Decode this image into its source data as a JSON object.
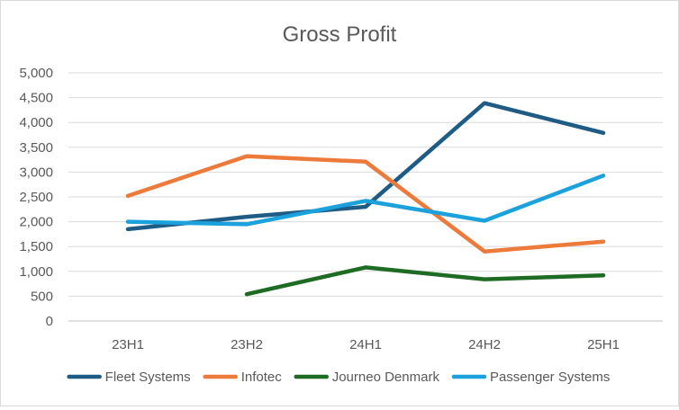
{
  "chart_data": {
    "type": "line",
    "title": "Gross Profit",
    "xlabel": "",
    "ylabel": "",
    "categories": [
      "23H1",
      "23H2",
      "24H1",
      "24H2",
      "25H1"
    ],
    "ylim": [
      0,
      5000
    ],
    "y_ticks": [
      0,
      500,
      1000,
      1500,
      2000,
      2500,
      3000,
      3500,
      4000,
      4500,
      5000
    ],
    "y_tick_labels": [
      "0",
      "500",
      "1,000",
      "1,500",
      "2,000",
      "2,500",
      "3,000",
      "3,500",
      "4,000",
      "4,500",
      "5,000"
    ],
    "grid": true,
    "legend_position": "bottom",
    "series": [
      {
        "name": "Fleet Systems",
        "color": "#1f5c85",
        "values": [
          1850,
          2100,
          2300,
          4390,
          3790
        ]
      },
      {
        "name": "Infotec",
        "color": "#ec7a3b",
        "values": [
          2520,
          3320,
          3210,
          1400,
          1600
        ]
      },
      {
        "name": "Journeo Denmark",
        "color": "#1e6b24",
        "values": [
          null,
          540,
          1080,
          840,
          920
        ]
      },
      {
        "name": "Passenger Systems",
        "color": "#1ba1db",
        "values": [
          2000,
          1950,
          2420,
          2020,
          2930
        ]
      }
    ]
  }
}
